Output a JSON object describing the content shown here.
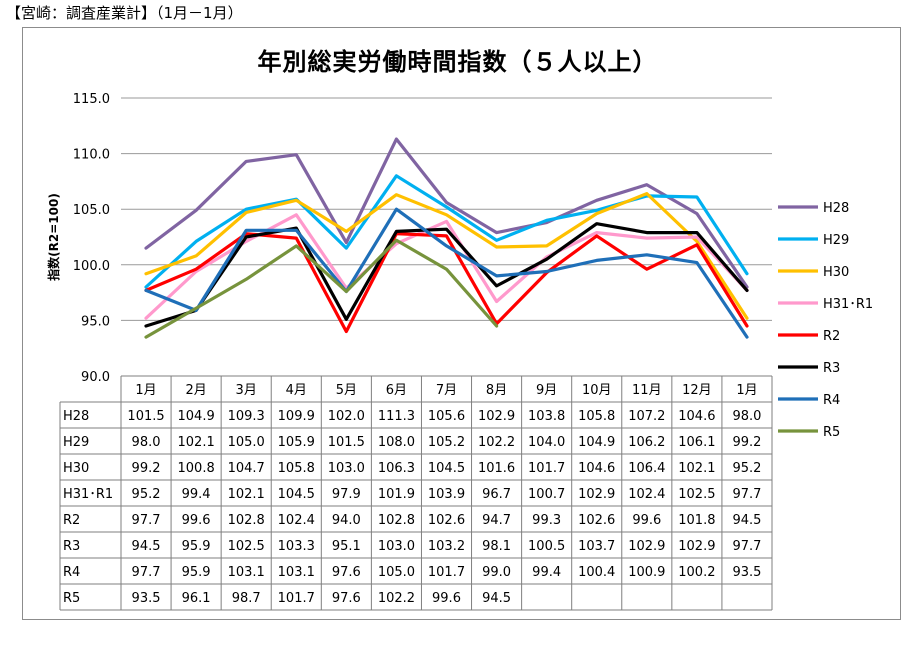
{
  "header": "【宮崎：調査産業計】（1月－1月）",
  "chart_data": {
    "type": "line",
    "title": "年別総実労働時間指数（５人以上）",
    "ylabel": "指数(R2=100)",
    "ylim": [
      90,
      115
    ],
    "yticks": [
      "90.0",
      "95.0",
      "100.0",
      "105.0",
      "110.0",
      "115.0"
    ],
    "grid": true,
    "legend_position": "right",
    "categories": [
      "1月",
      "2月",
      "3月",
      "4月",
      "5月",
      "6月",
      "7月",
      "8月",
      "9月",
      "10月",
      "11月",
      "12月",
      "1月"
    ],
    "series": [
      {
        "name": "H28",
        "color": "#8064a2",
        "values": [
          101.5,
          104.9,
          109.3,
          109.9,
          102.0,
          111.3,
          105.6,
          102.9,
          103.8,
          105.8,
          107.2,
          104.6,
          98.0
        ],
        "cells": [
          "101.5",
          "104.9",
          "109.3",
          "109.9",
          "102.0",
          "111.3",
          "105.6",
          "102.9",
          "103.8",
          "105.8",
          "107.2",
          "104.6",
          "98.0"
        ]
      },
      {
        "name": "H29",
        "color": "#00b0f0",
        "values": [
          98.0,
          102.1,
          105.0,
          105.9,
          101.5,
          108.0,
          105.2,
          102.2,
          104.0,
          104.9,
          106.2,
          106.1,
          99.2
        ],
        "cells": [
          "98.0",
          "102.1",
          "105.0",
          "105.9",
          "101.5",
          "108.0",
          "105.2",
          "102.2",
          "104.0",
          "104.9",
          "106.2",
          "106.1",
          "99.2"
        ]
      },
      {
        "name": "H30",
        "color": "#ffc000",
        "values": [
          99.2,
          100.8,
          104.7,
          105.8,
          103.0,
          106.3,
          104.5,
          101.6,
          101.7,
          104.6,
          106.4,
          102.1,
          95.2
        ],
        "cells": [
          "99.2",
          "100.8",
          "104.7",
          "105.8",
          "103.0",
          "106.3",
          "104.5",
          "101.6",
          "101.7",
          "104.6",
          "106.4",
          "102.1",
          "95.2"
        ]
      },
      {
        "name": "H31･R1",
        "color": "#ff99cc",
        "values": [
          95.2,
          99.4,
          102.1,
          104.5,
          97.9,
          101.9,
          103.9,
          96.7,
          100.7,
          102.9,
          102.4,
          102.5,
          97.7
        ],
        "cells": [
          "95.2",
          "99.4",
          "102.1",
          "104.5",
          "97.9",
          "101.9",
          "103.9",
          "96.7",
          "100.7",
          "102.9",
          "102.4",
          "102.5",
          "97.7"
        ]
      },
      {
        "name": "R2",
        "color": "#ff0000",
        "values": [
          97.7,
          99.6,
          102.8,
          102.4,
          94.0,
          102.8,
          102.6,
          94.7,
          99.3,
          102.6,
          99.6,
          101.8,
          94.5
        ],
        "cells": [
          "97.7",
          "99.6",
          "102.8",
          "102.4",
          "94.0",
          "102.8",
          "102.6",
          "94.7",
          "99.3",
          "102.6",
          "99.6",
          "101.8",
          "94.5"
        ]
      },
      {
        "name": "R3",
        "color": "#000000",
        "values": [
          94.5,
          95.9,
          102.5,
          103.3,
          95.1,
          103.0,
          103.2,
          98.1,
          100.5,
          103.7,
          102.9,
          102.9,
          97.7
        ],
        "cells": [
          "94.5",
          "95.9",
          "102.5",
          "103.3",
          "95.1",
          "103.0",
          "103.2",
          "98.1",
          "100.5",
          "103.7",
          "102.9",
          "102.9",
          "97.7"
        ]
      },
      {
        "name": "R4",
        "color": "#1f6fb8",
        "values": [
          97.7,
          95.9,
          103.1,
          103.1,
          97.6,
          105.0,
          101.7,
          99.0,
          99.4,
          100.4,
          100.9,
          100.2,
          93.5
        ],
        "cells": [
          "97.7",
          "95.9",
          "103.1",
          "103.1",
          "97.6",
          "105.0",
          "101.7",
          "99.0",
          "99.4",
          "100.4",
          "100.9",
          "100.2",
          "93.5"
        ]
      },
      {
        "name": "R5",
        "color": "#77933c",
        "values": [
          93.5,
          96.1,
          98.7,
          101.7,
          97.6,
          102.2,
          99.6,
          94.5,
          null,
          null,
          null,
          null,
          null
        ],
        "cells": [
          "93.5",
          "96.1",
          "98.7",
          "101.7",
          "97.6",
          "102.2",
          "99.6",
          "94.5",
          "",
          "",
          "",
          "",
          ""
        ]
      }
    ]
  }
}
